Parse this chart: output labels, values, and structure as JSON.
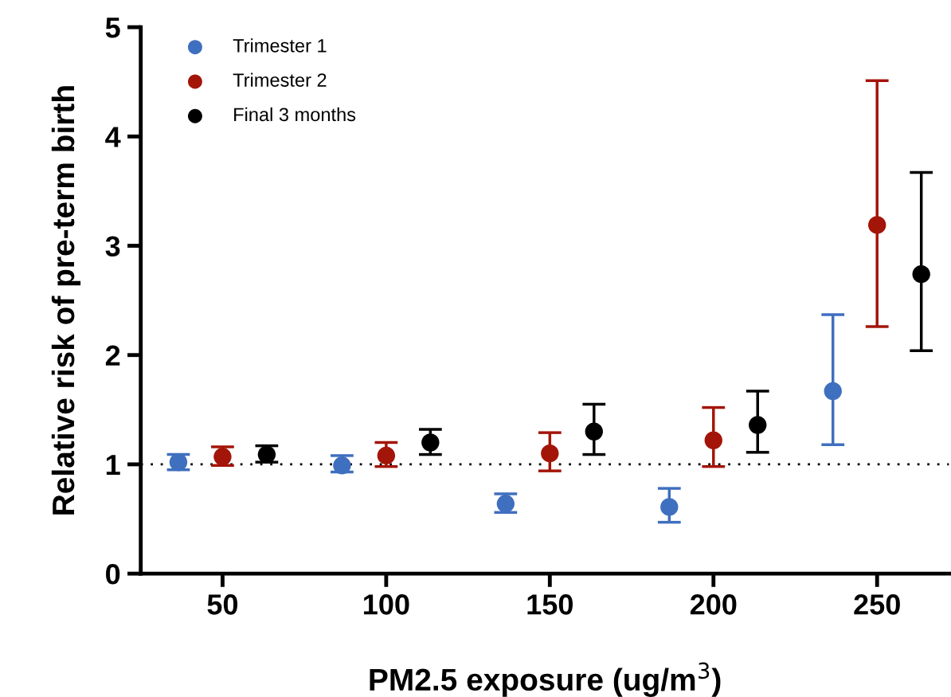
{
  "chart_data": {
    "type": "scatter",
    "xlabel": "PM2.5 exposure (ug/m$^{3}$)",
    "ylabel": "Relative risk of pre-term birth",
    "xlim": [
      25,
      272
    ],
    "xticks": [
      50,
      100,
      150,
      200,
      250
    ],
    "ylim": [
      0,
      5
    ],
    "yticks": [
      0,
      1,
      2,
      3,
      4,
      5
    ],
    "grid": false,
    "legend": "top left",
    "marker": "circle",
    "ref_lines": [
      {
        "axis": "y",
        "value": 1,
        "line_style": "dotted",
        "color": "#000000"
      }
    ],
    "series": [
      {
        "name": "Trimester 1",
        "color": "#3f6fbf",
        "x": [
          36.5,
          86.5,
          136.5,
          186.5,
          236.5
        ],
        "values": [
          1.02,
          0.99,
          0.64,
          0.61,
          1.67
        ],
        "errors": [
          [
            0.95,
            1.09
          ],
          [
            0.93,
            1.08
          ],
          [
            0.56,
            0.73
          ],
          [
            0.47,
            0.78
          ],
          [
            1.18,
            2.37
          ]
        ]
      },
      {
        "name": "Trimester 2",
        "color": "#a31508",
        "x": [
          50,
          100,
          150,
          200,
          250
        ],
        "values": [
          1.07,
          1.08,
          1.1,
          1.22,
          3.19
        ],
        "errors": [
          [
            0.99,
            1.16
          ],
          [
            0.98,
            1.2
          ],
          [
            0.94,
            1.29
          ],
          [
            0.98,
            1.52
          ],
          [
            2.26,
            4.51
          ]
        ]
      },
      {
        "name": "Final 3 months",
        "color": "#000000",
        "x": [
          63.5,
          113.5,
          163.5,
          213.5,
          263.5
        ],
        "values": [
          1.09,
          1.2,
          1.3,
          1.36,
          2.74
        ],
        "errors": [
          [
            1.02,
            1.17
          ],
          [
            1.09,
            1.32
          ],
          [
            1.09,
            1.55
          ],
          [
            1.11,
            1.67
          ],
          [
            2.04,
            3.67
          ]
        ]
      }
    ]
  }
}
